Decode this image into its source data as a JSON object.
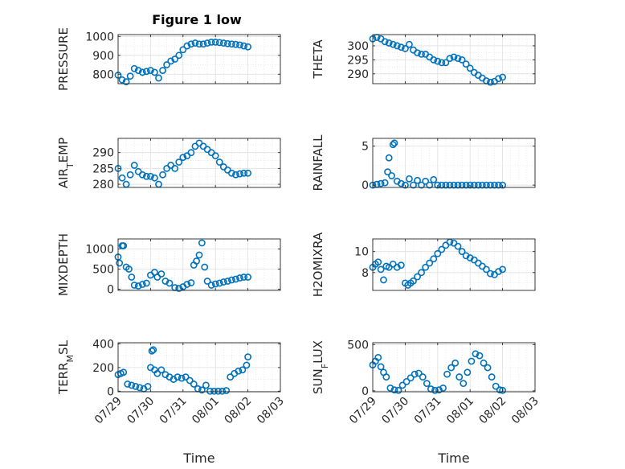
{
  "figure_title": "Figure 1 low",
  "colors": {
    "marker": "#0072BD",
    "axis": "#262626",
    "grid": "#DFDFDF"
  },
  "chart_data": [
    {
      "type": "scatter",
      "key": "pressure",
      "ylabel_parts": [
        {
          "t": "PRESSURE"
        }
      ],
      "ylim": [
        750,
        1010
      ],
      "yticks": [
        800,
        900,
        1000
      ],
      "yticklabels": [
        "800",
        "900",
        "1000"
      ],
      "show_xticks": false,
      "x": [
        "07/29 00:00",
        "07/29 03:00",
        "07/29 06:00",
        "07/29 09:00",
        "07/29 12:00",
        "07/29 15:00",
        "07/29 18:00",
        "07/29 21:00",
        "07/30 00:00",
        "07/30 03:00",
        "07/30 06:00",
        "07/30 09:00",
        "07/30 12:00",
        "07/30 15:00",
        "07/30 18:00",
        "07/30 21:00",
        "07/31 00:00",
        "07/31 03:00",
        "07/31 06:00",
        "07/31 09:00",
        "07/31 12:00",
        "07/31 15:00",
        "07/31 18:00",
        "07/31 21:00",
        "08/01 00:00",
        "08/01 03:00",
        "08/01 06:00",
        "08/01 09:00",
        "08/01 12:00",
        "08/01 15:00",
        "08/01 18:00",
        "08/01 21:00",
        "08/02 00:00"
      ],
      "y": [
        795,
        770,
        760,
        790,
        830,
        820,
        810,
        815,
        820,
        810,
        780,
        820,
        850,
        870,
        880,
        900,
        930,
        950,
        960,
        965,
        960,
        960,
        965,
        970,
        970,
        968,
        965,
        962,
        960,
        958,
        955,
        950,
        945
      ]
    },
    {
      "type": "scatter",
      "key": "theta",
      "ylabel_parts": [
        {
          "t": "THETA"
        }
      ],
      "ylim": [
        286.5,
        304
      ],
      "yticks": [
        290,
        295,
        300
      ],
      "yticklabels": [
        "290",
        "295",
        "300"
      ],
      "show_xticks": false,
      "x": [
        "07/29 00:00",
        "07/29 03:00",
        "07/29 06:00",
        "07/29 09:00",
        "07/29 12:00",
        "07/29 15:00",
        "07/29 18:00",
        "07/29 21:00",
        "07/30 00:00",
        "07/30 03:00",
        "07/30 06:00",
        "07/30 09:00",
        "07/30 12:00",
        "07/30 15:00",
        "07/30 18:00",
        "07/30 21:00",
        "07/31 00:00",
        "07/31 03:00",
        "07/31 06:00",
        "07/31 09:00",
        "07/31 12:00",
        "07/31 15:00",
        "07/31 18:00",
        "07/31 21:00",
        "08/01 00:00",
        "08/01 03:00",
        "08/01 06:00",
        "08/01 09:00",
        "08/01 12:00",
        "08/01 15:00",
        "08/01 18:00",
        "08/01 21:00",
        "08/02 00:00"
      ],
      "y": [
        302.5,
        303,
        302.5,
        301.5,
        301,
        300.5,
        300,
        299.5,
        299,
        300.5,
        298.5,
        297.5,
        297,
        297,
        296,
        295,
        294.5,
        294,
        294,
        295.5,
        296,
        295.5,
        295,
        293.5,
        292,
        290.5,
        289.5,
        288.5,
        287.5,
        287,
        287.3,
        288.3,
        288.8
      ]
    },
    {
      "type": "scatter",
      "key": "air_temp",
      "ylabel_parts": [
        {
          "t": "AIR"
        },
        {
          "t": "T",
          "sub": true
        },
        {
          "t": "EMP"
        }
      ],
      "ylim": [
        279,
        294.5
      ],
      "yticks": [
        280,
        285,
        290
      ],
      "yticklabels": [
        "280",
        "285",
        "290"
      ],
      "show_xticks": false,
      "x": [
        "07/29 00:00",
        "07/29 03:00",
        "07/29 06:00",
        "07/29 09:00",
        "07/29 12:00",
        "07/29 15:00",
        "07/29 18:00",
        "07/29 21:00",
        "07/30 00:00",
        "07/30 03:00",
        "07/30 06:00",
        "07/30 09:00",
        "07/30 12:00",
        "07/30 15:00",
        "07/30 18:00",
        "07/30 21:00",
        "07/31 00:00",
        "07/31 03:00",
        "07/31 06:00",
        "07/31 09:00",
        "07/31 12:00",
        "07/31 15:00",
        "07/31 18:00",
        "07/31 21:00",
        "08/01 00:00",
        "08/01 03:00",
        "08/01 06:00",
        "08/01 09:00",
        "08/01 12:00",
        "08/01 15:00",
        "08/01 18:00",
        "08/01 21:00",
        "08/02 00:00"
      ],
      "y": [
        285,
        282,
        280,
        283,
        286,
        284,
        283,
        282.5,
        282.5,
        282,
        280,
        283,
        285,
        286,
        285,
        287,
        288.5,
        289,
        290,
        292,
        293,
        292,
        291,
        290,
        289,
        287,
        285.5,
        284.5,
        283.5,
        283,
        283.3,
        283.5,
        283.5
      ]
    },
    {
      "type": "scatter",
      "key": "rainfall",
      "ylabel_parts": [
        {
          "t": "RAINFALL"
        }
      ],
      "ylim": [
        -0.3,
        6
      ],
      "yticks": [
        0,
        5
      ],
      "yticklabels": [
        "0",
        "5"
      ],
      "show_xticks": false,
      "x": [
        "07/29 00:00",
        "07/29 03:00",
        "07/29 06:00",
        "07/29 09:00",
        "07/29 11:00",
        "07/29 12:00",
        "07/29 14:00",
        "07/29 15:00",
        "07/29 16:00",
        "07/29 18:00",
        "07/29 21:00",
        "07/30 00:00",
        "07/30 03:00",
        "07/30 06:00",
        "07/30 09:00",
        "07/30 12:00",
        "07/30 15:00",
        "07/30 18:00",
        "07/30 21:00",
        "07/31 00:00",
        "07/31 03:00",
        "07/31 06:00",
        "07/31 09:00",
        "07/31 12:00",
        "07/31 15:00",
        "07/31 18:00",
        "07/31 21:00",
        "08/01 00:00",
        "08/01 03:00",
        "08/01 06:00",
        "08/01 09:00",
        "08/01 12:00",
        "08/01 15:00",
        "08/01 18:00",
        "08/01 21:00",
        "08/02 00:00"
      ],
      "y": [
        0,
        0.1,
        0.2,
        0.3,
        1.7,
        3.5,
        1.2,
        5.2,
        5.4,
        0.5,
        0.2,
        0,
        0.8,
        0,
        0.6,
        0,
        0.5,
        0,
        0.7,
        0,
        0,
        0,
        0,
        0,
        0,
        0,
        0,
        0,
        0,
        0,
        0,
        0,
        0,
        0,
        0,
        0
      ]
    },
    {
      "type": "scatter",
      "key": "mixdepth",
      "ylabel_parts": [
        {
          "t": "MIXDEPTH"
        }
      ],
      "ylim": [
        -30,
        1250
      ],
      "yticks": [
        0,
        500,
        1000
      ],
      "yticklabels": [
        "0",
        "500",
        "1000"
      ],
      "show_xticks": false,
      "x": [
        "07/29 00:00",
        "07/29 01:00",
        "07/29 03:00",
        "07/29 04:00",
        "07/29 06:00",
        "07/29 08:00",
        "07/29 10:00",
        "07/29 12:00",
        "07/29 15:00",
        "07/29 18:00",
        "07/29 21:00",
        "07/30 00:00",
        "07/30 03:00",
        "07/30 05:00",
        "07/30 08:00",
        "07/30 11:00",
        "07/30 14:00",
        "07/30 18:00",
        "07/30 21:00",
        "07/31 00:00",
        "07/31 03:00",
        "07/31 06:00",
        "07/31 08:00",
        "07/31 10:00",
        "07/31 12:00",
        "07/31 14:00",
        "07/31 16:00",
        "07/31 18:00",
        "07/31 21:00",
        "08/01 00:00",
        "08/01 03:00",
        "08/01 06:00",
        "08/01 09:00",
        "08/01 12:00",
        "08/01 15:00",
        "08/01 18:00",
        "08/01 21:00",
        "08/02 00:00"
      ],
      "y": [
        800,
        650,
        1080,
        1080,
        550,
        500,
        300,
        100,
        80,
        120,
        150,
        350,
        420,
        300,
        380,
        200,
        150,
        40,
        20,
        60,
        120,
        160,
        600,
        700,
        850,
        1150,
        550,
        200,
        100,
        130,
        150,
        180,
        200,
        230,
        250,
        280,
        300,
        300
      ]
    },
    {
      "type": "scatter",
      "key": "h2omixra",
      "ylabel_parts": [
        {
          "t": "H2OMIXRA"
        }
      ],
      "ylim": [
        6.3,
        11.2
      ],
      "yticks": [
        8,
        10
      ],
      "yticklabels": [
        "8",
        "10"
      ],
      "show_xticks": false,
      "x": [
        "07/29 00:00",
        "07/29 02:00",
        "07/29 04:00",
        "07/29 06:00",
        "07/29 08:00",
        "07/29 10:00",
        "07/29 12:00",
        "07/29 15:00",
        "07/29 18:00",
        "07/29 21:00",
        "07/30 00:00",
        "07/30 02:00",
        "07/30 04:00",
        "07/30 06:00",
        "07/30 09:00",
        "07/30 12:00",
        "07/30 15:00",
        "07/30 18:00",
        "07/30 21:00",
        "07/31 00:00",
        "07/31 03:00",
        "07/31 06:00",
        "07/31 09:00",
        "07/31 12:00",
        "07/31 15:00",
        "07/31 18:00",
        "07/31 21:00",
        "08/01 00:00",
        "08/01 03:00",
        "08/01 06:00",
        "08/01 09:00",
        "08/01 12:00",
        "08/01 15:00",
        "08/01 18:00",
        "08/01 21:00",
        "08/02 00:00"
      ],
      "y": [
        8.5,
        8.8,
        9,
        8.3,
        7.3,
        8.6,
        8.5,
        8.8,
        8.5,
        8.7,
        7,
        6.8,
        7,
        7.2,
        7.6,
        8,
        8.5,
        8.9,
        9.3,
        9.8,
        10.2,
        10.6,
        10.9,
        10.8,
        10.5,
        10,
        9.6,
        9.4,
        9.2,
        8.9,
        8.6,
        8.3,
        7.9,
        7.8,
        8.1,
        8.3
      ]
    },
    {
      "type": "scatter",
      "key": "terr_msl",
      "ylabel_parts": [
        {
          "t": "TERR"
        },
        {
          "t": "M",
          "sub": true
        },
        {
          "t": "SL"
        }
      ],
      "ylim": [
        -5,
        410
      ],
      "yticks": [
        0,
        200,
        400
      ],
      "yticklabels": [
        "0",
        "200",
        "400"
      ],
      "show_xticks": true,
      "x": [
        "07/29 00:00",
        "07/29 02:00",
        "07/29 04:00",
        "07/29 07:00",
        "07/29 10:00",
        "07/29 13:00",
        "07/29 16:00",
        "07/29 19:00",
        "07/29 22:00",
        "07/30 00:00",
        "07/30 01:00",
        "07/30 02:00",
        "07/30 03:00",
        "07/30 05:00",
        "07/30 08:00",
        "07/30 11:00",
        "07/30 14:00",
        "07/30 17:00",
        "07/30 20:00",
        "07/30 23:00",
        "07/31 02:00",
        "07/31 05:00",
        "07/31 08:00",
        "07/31 11:00",
        "07/31 14:00",
        "07/31 17:00",
        "07/31 20:00",
        "07/31 23:00",
        "08/01 02:00",
        "08/01 05:00",
        "08/01 08:00",
        "08/01 11:00",
        "08/01 14:00",
        "08/01 17:00",
        "08/01 20:00",
        "08/01 23:00",
        "08/02 00:00"
      ],
      "y": [
        140,
        150,
        160,
        60,
        50,
        40,
        30,
        20,
        40,
        200,
        340,
        350,
        180,
        150,
        180,
        140,
        120,
        100,
        120,
        110,
        120,
        90,
        60,
        20,
        10,
        50,
        0,
        0,
        0,
        0,
        5,
        120,
        150,
        170,
        180,
        220,
        290
      ]
    },
    {
      "type": "scatter",
      "key": "sun_flux",
      "ylabel_parts": [
        {
          "t": "SUN"
        },
        {
          "t": "F",
          "sub": true
        },
        {
          "t": "LUX"
        }
      ],
      "ylim": [
        -10,
        520
      ],
      "yticks": [
        0,
        500
      ],
      "yticklabels": [
        "0",
        "500"
      ],
      "show_xticks": true,
      "x": [
        "07/29 00:00",
        "07/29 02:00",
        "07/29 04:00",
        "07/29 06:00",
        "07/29 08:00",
        "07/29 10:00",
        "07/29 13:00",
        "07/29 16:00",
        "07/29 19:00",
        "07/29 22:00",
        "07/30 01:00",
        "07/30 04:00",
        "07/30 07:00",
        "07/30 10:00",
        "07/30 13:00",
        "07/30 16:00",
        "07/30 19:00",
        "07/30 22:00",
        "07/31 01:00",
        "07/31 04:00",
        "07/31 07:00",
        "07/31 10:00",
        "07/31 13:00",
        "07/31 16:00",
        "07/31 19:00",
        "07/31 22:00",
        "08/01 01:00",
        "08/01 04:00",
        "08/01 07:00",
        "08/01 10:00",
        "08/01 13:00",
        "08/01 16:00",
        "08/01 19:00",
        "08/01 22:00",
        "08/02 00:00"
      ],
      "y": [
        280,
        320,
        360,
        260,
        200,
        150,
        30,
        10,
        5,
        60,
        100,
        140,
        180,
        190,
        150,
        80,
        20,
        5,
        10,
        30,
        180,
        250,
        300,
        150,
        80,
        200,
        320,
        400,
        380,
        300,
        250,
        150,
        50,
        10,
        5
      ]
    }
  ],
  "axes": {
    "xlim": [
      "07/29 00:00",
      "08/03 00:00"
    ],
    "xticks": [
      "07/29",
      "07/30",
      "07/31",
      "08/01",
      "08/02",
      "08/03"
    ],
    "xlabel": "Time"
  }
}
